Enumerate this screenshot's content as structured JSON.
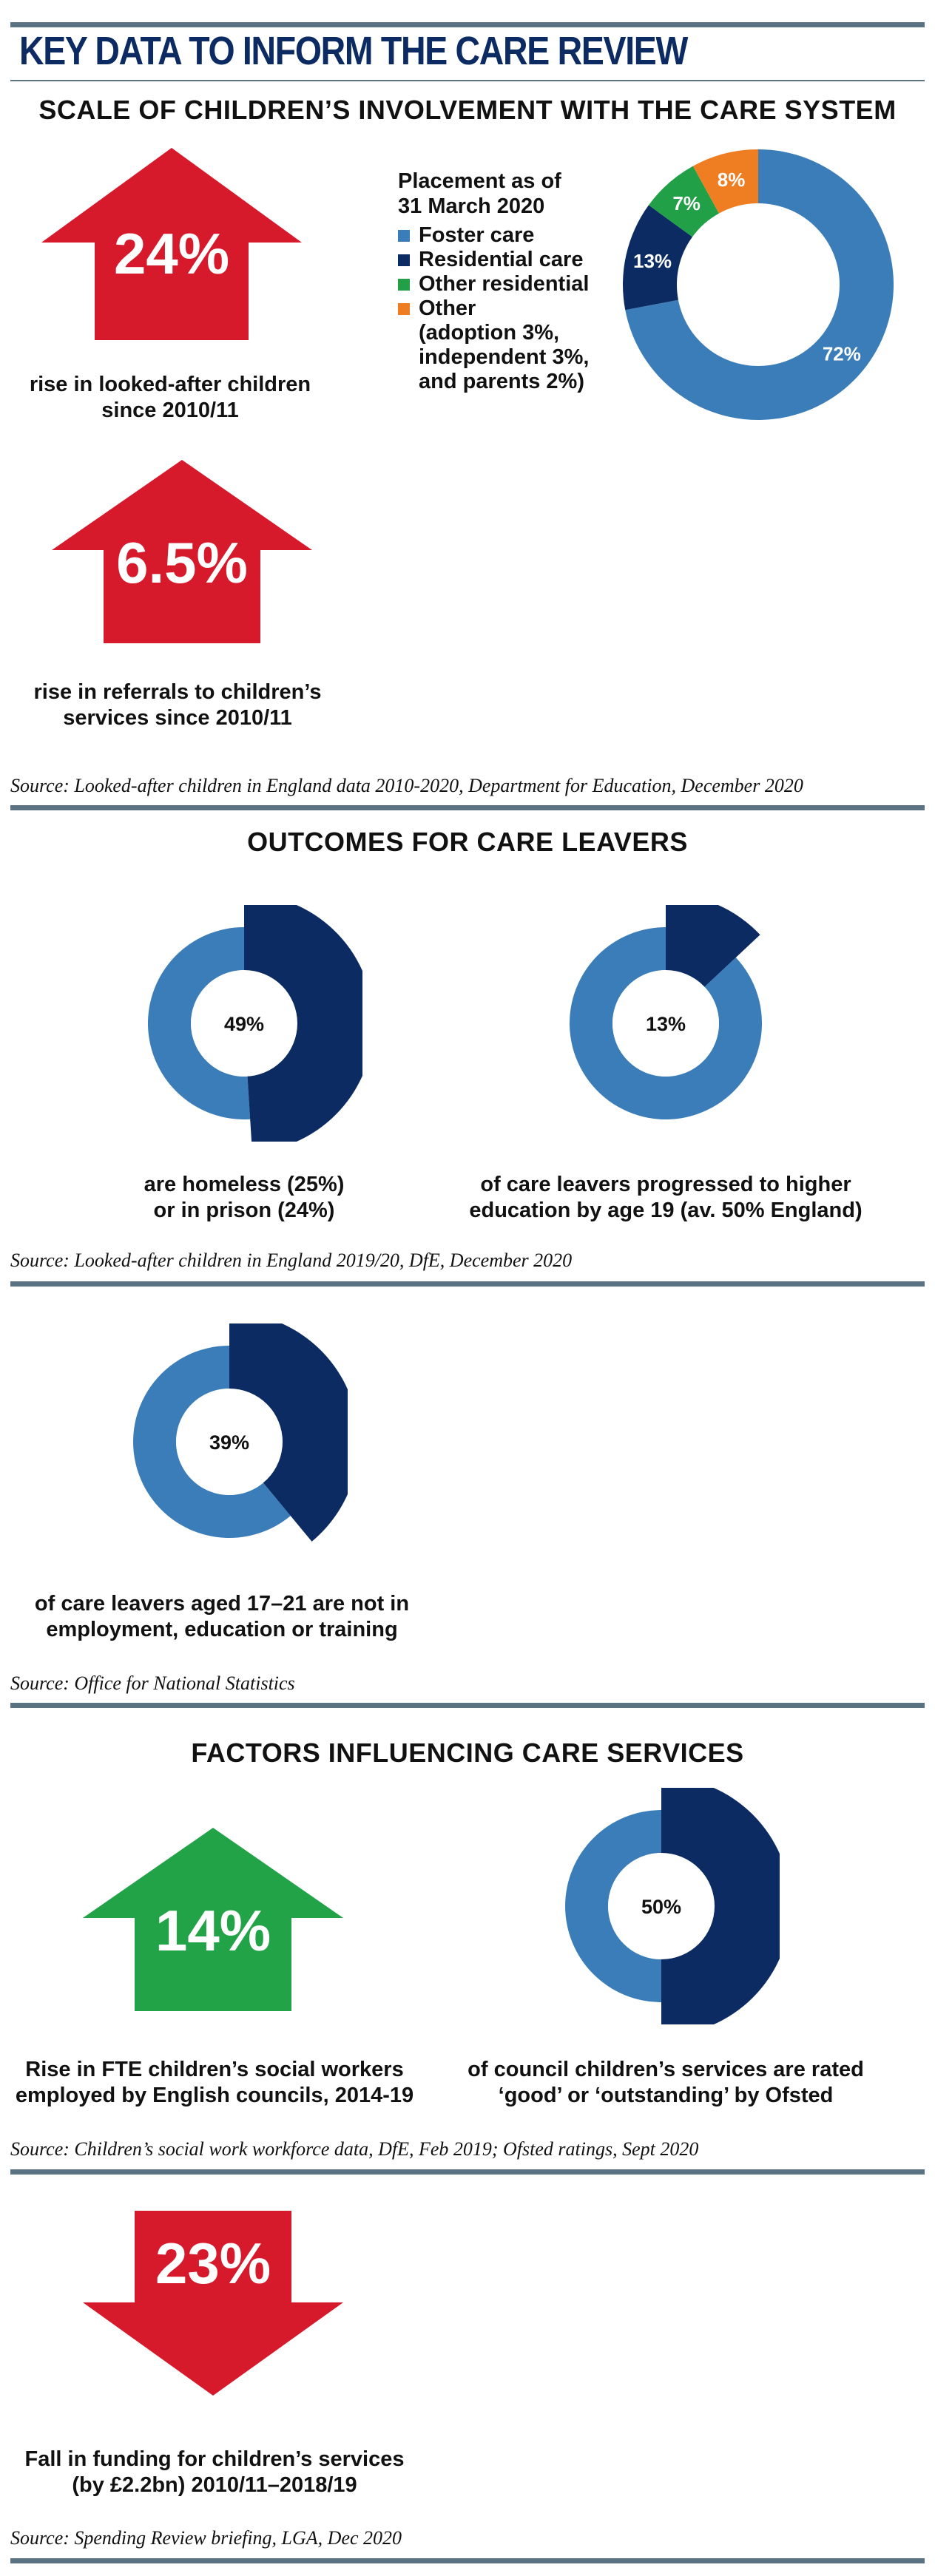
{
  "title": "KEY DATA TO INFORM THE CARE REVIEW",
  "colors": {
    "red": "#d7192c",
    "green": "#23a347",
    "foster": "#3a7db8",
    "residential": "#0c2b63",
    "other_res": "#22a048",
    "other": "#ef7d22",
    "rule": "#5b7282",
    "title": "#0c2b63"
  },
  "sections": {
    "scale": {
      "title": "SCALE OF CHILDREN’S INVOLVEMENT WITH THE CARE SYSTEM",
      "stat1": {
        "value": "24%",
        "caption_l1": "rise in looked-after children",
        "caption_l2": "since 2010/11",
        "direction": "up",
        "color": "red"
      },
      "stat2": {
        "value": "6.5%",
        "caption_l1": "rise in referrals to children’s",
        "caption_l2": "services since 2010/11",
        "direction": "up",
        "color": "red"
      },
      "legend": {
        "heading_l1": "Placement as of",
        "heading_l2": "31 March 2020",
        "items": [
          {
            "label": "Foster care",
            "color": "#3a7db8"
          },
          {
            "label": "Residential care",
            "color": "#0c2b63"
          },
          {
            "label": "Other residential",
            "color": "#22a048"
          },
          {
            "label": "Other",
            "color": "#ef7d22",
            "sub": [
              "(adoption 3%,",
              "independent 3%,",
              "and parents 2%)"
            ]
          }
        ]
      },
      "source": "Source: Looked-after children in England data 2010-2020, Department for Education, December 2020"
    },
    "outcomes": {
      "title": "OUTCOMES FOR CARE LEAVERS",
      "donut1": {
        "label": "49%",
        "caption_l1": "are homeless (25%)",
        "caption_l2": "or in prison (24%)"
      },
      "donut2": {
        "label": "13%",
        "caption_l1": "of care leavers progressed to higher",
        "caption_l2": "education by age 19 (av. 50% England)"
      },
      "source1": "Source: Looked-after children in England 2019/20, DfE, December 2020",
      "donut3": {
        "label": "39%",
        "caption_l1": "of care leavers aged 17–21 are not in",
        "caption_l2": "employment, education or training"
      },
      "source2": "Source: Office for National Statistics"
    },
    "factors": {
      "title": "FACTORS INFLUENCING CARE SERVICES",
      "stat1": {
        "value": "14%",
        "caption_l1": "Rise in FTE children’s social workers",
        "caption_l2": "employed by English councils, 2014-19",
        "direction": "up",
        "color": "green"
      },
      "donut4": {
        "label": "50%",
        "caption_l1": "of council children’s services are rated",
        "caption_l2": "‘good’ or ‘outstanding’ by Ofsted"
      },
      "source1": "Source: Children’s social work workforce data,  DfE, Feb 2019; Ofsted ratings, Sept 2020",
      "stat2": {
        "value": "23%",
        "caption_l1": "Fall in funding for children’s services",
        "caption_l2": "(by £2.2bn) 2010/11–2018/19",
        "direction": "down",
        "color": "red"
      },
      "source2": "Source: Spending Review briefing, LGA, Dec 2020"
    }
  },
  "chart_data": [
    {
      "type": "pie",
      "title": "Placement as of 31 March 2020",
      "categories": [
        "Foster care",
        "Residential care",
        "Other residential",
        "Other"
      ],
      "values": [
        72,
        13,
        7,
        8
      ],
      "labels": [
        "72%",
        "13%",
        "7%",
        "8%"
      ],
      "colors": [
        "#3a7db8",
        "#0c2b63",
        "#22a048",
        "#ef7d22"
      ]
    },
    {
      "type": "pie",
      "values": [
        49,
        51
      ],
      "center_label": "49%",
      "colors": [
        "#0c2b63",
        "#3a7db8"
      ]
    },
    {
      "type": "pie",
      "values": [
        13,
        87
      ],
      "center_label": "13%",
      "colors": [
        "#0c2b63",
        "#3a7db8"
      ]
    },
    {
      "type": "pie",
      "values": [
        39,
        61
      ],
      "center_label": "39%",
      "colors": [
        "#0c2b63",
        "#3a7db8"
      ]
    },
    {
      "type": "pie",
      "values": [
        50,
        50
      ],
      "center_label": "50%",
      "colors": [
        "#0c2b63",
        "#3a7db8"
      ]
    }
  ]
}
